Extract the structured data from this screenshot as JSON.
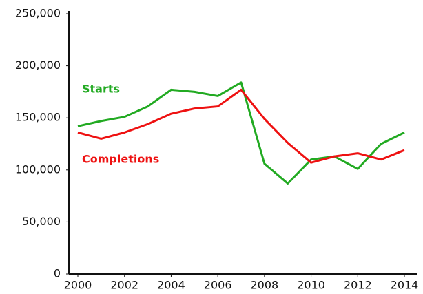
{
  "chart_data": {
    "type": "line",
    "x": [
      2000,
      2001,
      2002,
      2003,
      2004,
      2005,
      2006,
      2007,
      2008,
      2009,
      2010,
      2011,
      2012,
      2013,
      2014
    ],
    "series": [
      {
        "name": "Starts",
        "color": "#22aa22",
        "values": [
          142000,
          147000,
          151000,
          161000,
          177000,
          175000,
          171000,
          184000,
          106000,
          87000,
          110000,
          113000,
          101000,
          125000,
          136000
        ]
      },
      {
        "name": "Completions",
        "color": "#ee1111",
        "values": [
          136000,
          130000,
          136000,
          144000,
          154000,
          159000,
          161000,
          177000,
          149000,
          126000,
          107000,
          113000,
          116000,
          110000,
          119000
        ]
      }
    ],
    "xlim": [
      2000,
      2014
    ],
    "xticks": [
      2000,
      2002,
      2004,
      2006,
      2008,
      2010,
      2012,
      2014
    ],
    "ylim": [
      0,
      250000
    ],
    "yticks": [
      0,
      {
        "value": 50000,
        "label": "50,000"
      },
      {
        "value": 100000,
        "label": "100,000"
      },
      {
        "value": 150000,
        "label": "150,000"
      },
      {
        "value": 200000,
        "label": "200,000"
      },
      {
        "value": 250000,
        "label": "250,000"
      }
    ],
    "grid": false
  }
}
